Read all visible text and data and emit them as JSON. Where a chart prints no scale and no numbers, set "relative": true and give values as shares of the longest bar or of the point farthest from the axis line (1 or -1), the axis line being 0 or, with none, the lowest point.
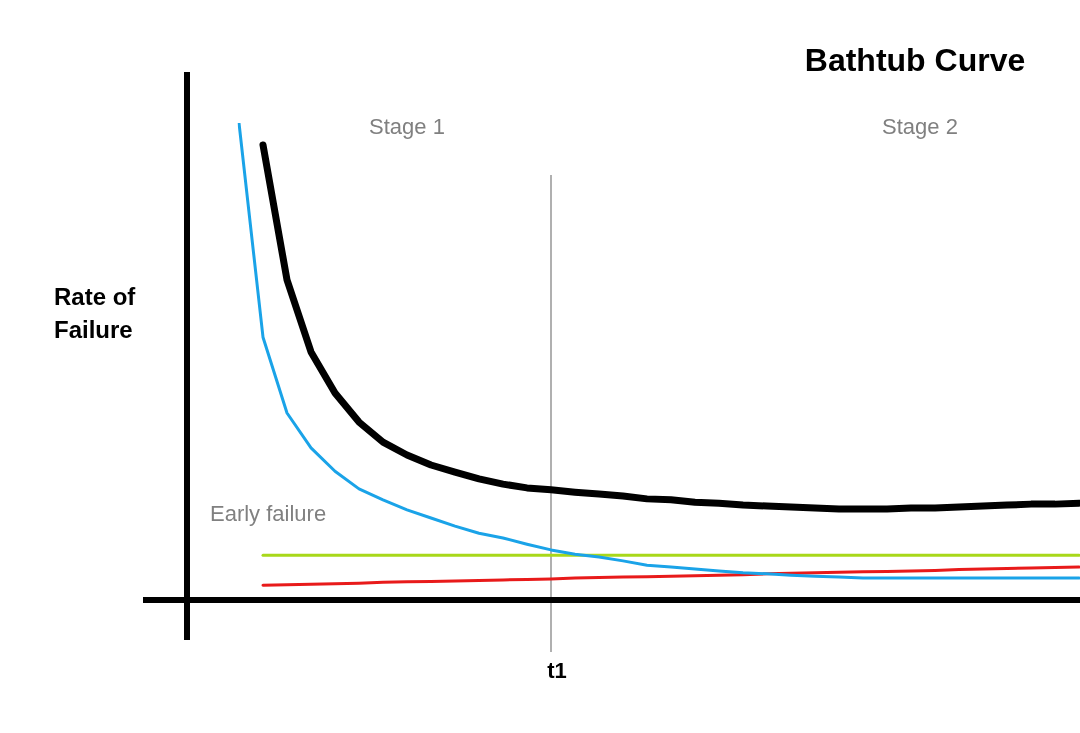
{
  "chart_data": {
    "type": "line",
    "title": "Bathtub Curve",
    "ylabel": "Rate of Failure",
    "relative": true,
    "grid": false,
    "legend": false,
    "marker": "none",
    "line_style": "solid",
    "annotations": [
      "Stage 1",
      "Stage 2",
      "Early failure",
      "t1"
    ],
    "categories": [
      null,
      null,
      null,
      null,
      null,
      null,
      null,
      null,
      null,
      null,
      null,
      null,
      null,
      null,
      null,
      null,
      null,
      null,
      null,
      null,
      null,
      null,
      null,
      null,
      null,
      null,
      null,
      null,
      null,
      null,
      null,
      null,
      null,
      null,
      null,
      null
    ],
    "series": [
      {
        "color": "#000000",
        "values": [
          null,
          0.954,
          0.671,
          0.52,
          0.434,
          0.373,
          0.331,
          0.304,
          0.283,
          0.268,
          0.254,
          0.243,
          0.235,
          0.231,
          0.226,
          0.222,
          0.218,
          0.212,
          0.21,
          0.205,
          0.203,
          0.199,
          0.197,
          0.195,
          0.193,
          0.191,
          0.191,
          0.191,
          0.193,
          0.193,
          0.195,
          0.197,
          0.199,
          0.201,
          0.201,
          0.203
        ]
      },
      {
        "color": "#1aa3e8",
        "values": [
          1.0,
          0.551,
          0.392,
          0.319,
          0.27,
          0.233,
          0.21,
          0.189,
          0.172,
          0.155,
          0.14,
          0.13,
          0.117,
          0.105,
          0.096,
          0.09,
          0.082,
          0.073,
          0.069,
          0.065,
          0.061,
          0.057,
          0.055,
          0.052,
          0.05,
          0.048,
          0.046,
          0.046,
          0.046,
          0.046,
          0.046,
          0.046,
          0.046,
          0.046,
          0.046,
          0.046
        ]
      },
      {
        "color": "#a8d81a",
        "values": [
          null,
          0.094,
          0.094,
          0.094,
          0.094,
          0.094,
          0.094,
          0.094,
          0.094,
          0.094,
          0.094,
          0.094,
          0.094,
          0.094,
          0.094,
          0.094,
          0.094,
          0.094,
          0.094,
          0.094,
          0.094,
          0.094,
          0.094,
          0.094,
          0.094,
          0.094,
          0.094,
          0.094,
          0.094,
          0.094,
          0.094,
          0.094,
          0.094,
          0.094,
          0.094,
          0.094
        ]
      },
      {
        "color": "#e81a1a",
        "values": [
          null,
          0.031,
          0.032,
          0.033,
          0.034,
          0.035,
          0.037,
          0.038,
          0.039,
          0.04,
          0.041,
          0.042,
          0.043,
          0.044,
          0.046,
          0.047,
          0.048,
          0.049,
          0.05,
          0.051,
          0.052,
          0.053,
          0.055,
          0.056,
          0.057,
          0.058,
          0.059,
          0.06,
          0.061,
          0.062,
          0.064,
          0.065,
          0.066,
          0.067,
          0.068,
          0.069
        ]
      }
    ]
  }
}
